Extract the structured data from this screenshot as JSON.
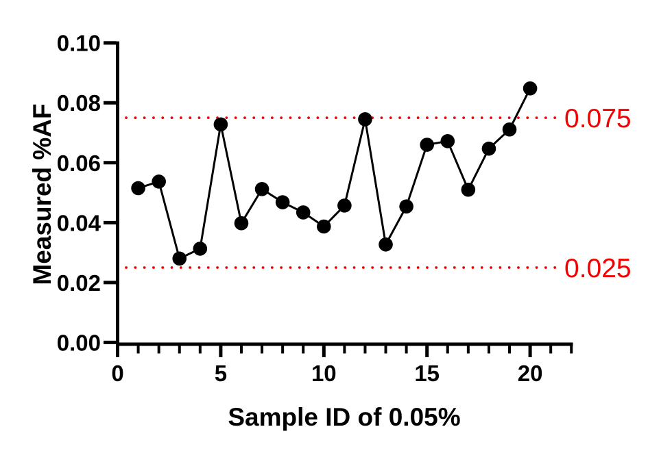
{
  "chart_data": {
    "type": "line",
    "title": "",
    "xlabel": "Sample ID of 0.05%",
    "ylabel": "Measured %AF",
    "x": [
      1,
      2,
      3,
      4,
      5,
      6,
      7,
      8,
      9,
      10,
      11,
      12,
      13,
      14,
      15,
      16,
      17,
      18,
      19,
      20
    ],
    "values": [
      0.0515,
      0.0537,
      0.028,
      0.0313,
      0.0728,
      0.0398,
      0.0512,
      0.0468,
      0.0434,
      0.0387,
      0.0457,
      0.0745,
      0.0327,
      0.0454,
      0.066,
      0.0672,
      0.051,
      0.0647,
      0.0711,
      0.0848
    ],
    "series_color": "#000000",
    "marker": "filled-circle",
    "xlim": [
      0,
      22
    ],
    "ylim": [
      0,
      0.1
    ],
    "x_major_ticks": [
      0,
      5,
      10,
      15,
      20
    ],
    "x_minor_tick_step": 1,
    "y_ticks": [
      {
        "v": 0.0,
        "label": "0.00"
      },
      {
        "v": 0.02,
        "label": "0.02"
      },
      {
        "v": 0.04,
        "label": "0.04"
      },
      {
        "v": 0.06,
        "label": "0.06"
      },
      {
        "v": 0.08,
        "label": "0.08"
      },
      {
        "v": 0.1,
        "label": "0.10"
      }
    ],
    "grid": false,
    "background": "#ffffff",
    "reference_lines": [
      {
        "value": 0.075,
        "label": "0.075",
        "style": "dotted",
        "color": "#f40000"
      },
      {
        "value": 0.025,
        "label": "0.025",
        "style": "dotted",
        "color": "#f40000"
      }
    ]
  }
}
